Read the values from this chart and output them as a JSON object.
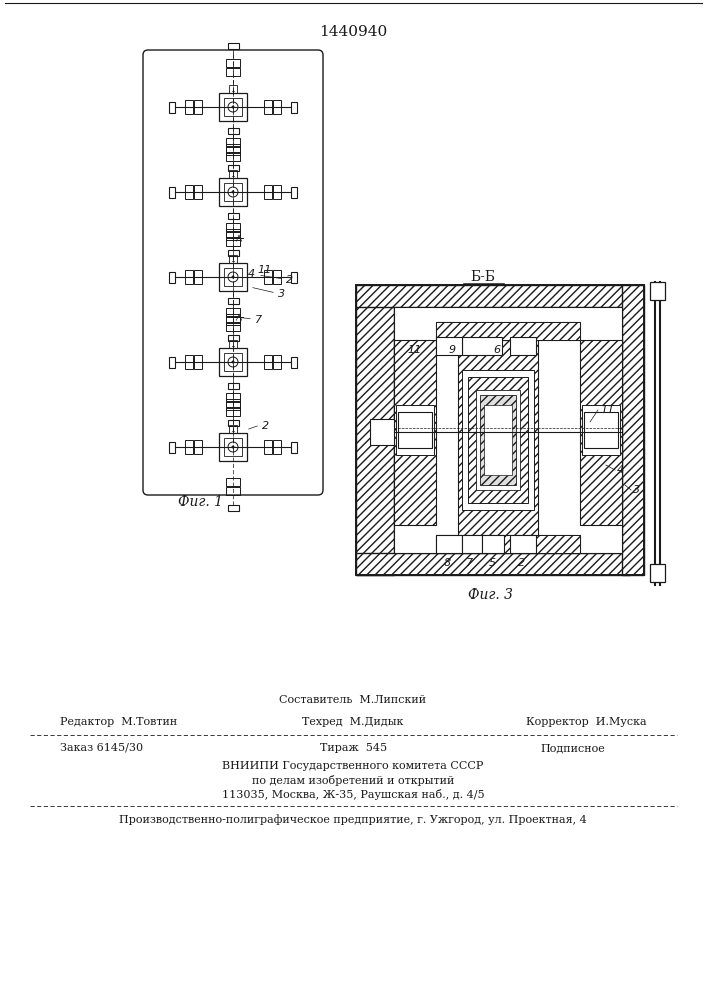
{
  "patent_number": "1440940",
  "fig1_caption": "Фиг. 1",
  "fig3_caption": "Фиг. 3",
  "fig3_label": "Б-Б",
  "line_color": "#1a1a1a",
  "footer": {
    "line1_left": "Редактор  М.Товтин",
    "line1_center": "Составитель  М.Липский",
    "line1_center2": "Техред  М.Дидык",
    "line1_right": "Корректор  И.Муска",
    "line2_left": "Заказ 6145/30",
    "line2_center": "Тираж  545",
    "line2_right": "Подписное",
    "line3": "ВНИИПИ Государственного комитета СССР",
    "line4": "по делам изобретений и открытий",
    "line5": "113035, Москва, Ж-35, Раушская наб., д. 4/5",
    "line6": "Производственно-полиграфическое предприятие, г. Ужгород, ул. Проектная, 4"
  }
}
